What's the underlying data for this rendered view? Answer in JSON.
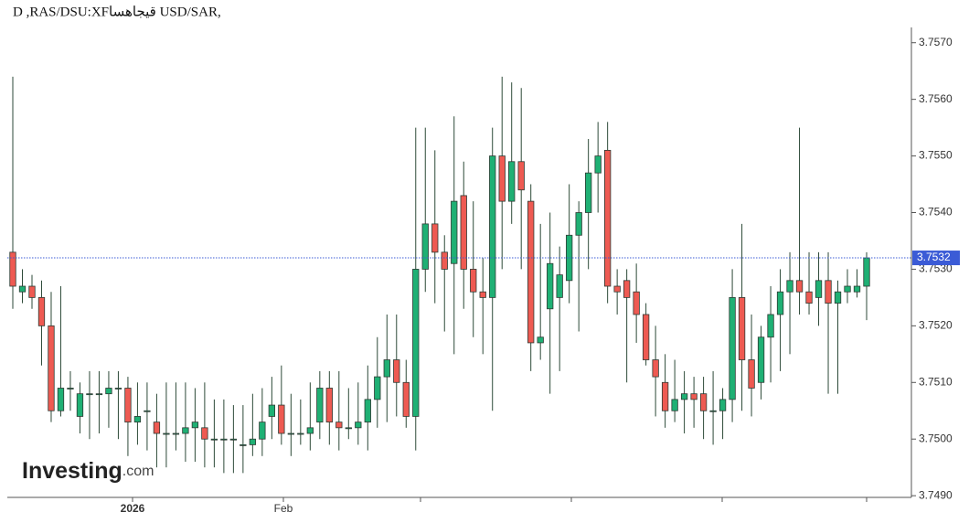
{
  "chart_data": {
    "type": "candlestick",
    "title": "D ,RAS/DSU:XFقيجاهسا USD/SAR,",
    "logo": "Investing",
    "logo_suffix": ".com",
    "x_labels": [
      "2026",
      "Feb"
    ],
    "last_price": 3.7532,
    "up_color": "#1fb074",
    "down_color": "#ee5a52",
    "ylim": [
      3.74897,
      3.75727
    ],
    "yticks": [
      {
        "value": 3.749,
        "label": "3.7490"
      },
      {
        "value": 3.75,
        "label": "3.7500"
      },
      {
        "value": 3.751,
        "label": "3.7510"
      },
      {
        "value": 3.752,
        "label": "3.7520"
      },
      {
        "value": 3.753,
        "label": "3.7530"
      },
      {
        "value": 3.754,
        "label": "3.7540"
      },
      {
        "value": 3.755,
        "label": "3.7550"
      },
      {
        "value": 3.756,
        "label": "3.7560"
      },
      {
        "value": 3.757,
        "label": "3.7570"
      }
    ],
    "open": [
      3.7533,
      3.7526,
      3.7527,
      3.7525,
      3.752,
      3.7505,
      3.7509,
      3.7504,
      3.7508,
      3.7508,
      3.7508,
      3.7509,
      3.7509,
      3.7503,
      3.7505,
      3.7503,
      3.7501,
      3.7501,
      3.7501,
      3.7502,
      3.7502,
      3.75,
      3.75,
      3.75,
      3.7499,
      3.7499,
      3.75,
      3.7504,
      3.7506,
      3.7501,
      3.7501,
      3.7501,
      3.7503,
      3.7509,
      3.7503,
      3.7502,
      3.7502,
      3.7503,
      3.7507,
      3.7511,
      3.7514,
      3.751,
      3.7504,
      3.753,
      3.7538,
      3.7533,
      3.7531,
      3.7543,
      3.753,
      3.7526,
      3.7525,
      3.755,
      3.7542,
      3.7549,
      3.7542,
      3.7517,
      3.7523,
      3.7525,
      3.7528,
      3.7536,
      3.754,
      3.7547,
      3.7551,
      3.7527,
      3.7528,
      3.7526,
      3.7522,
      3.7514,
      3.751,
      3.7505,
      3.7507,
      3.7508,
      3.7508,
      3.7505,
      3.7505,
      3.7507,
      3.7525,
      3.7514,
      3.751,
      3.7518,
      3.7522,
      3.7526,
      3.7528,
      3.7526,
      3.7525,
      3.7528,
      3.7524,
      3.7526,
      3.7526,
      3.7527
    ],
    "high": [
      3.7564,
      3.753,
      3.7529,
      3.7528,
      3.7526,
      3.7527,
      3.7512,
      3.751,
      3.7512,
      3.7512,
      3.7512,
      3.7512,
      3.7511,
      3.751,
      3.751,
      3.7508,
      3.751,
      3.751,
      3.751,
      3.7509,
      3.751,
      3.7507,
      3.7507,
      3.7506,
      3.7506,
      3.7508,
      3.7509,
      3.7511,
      3.7513,
      3.7508,
      3.7507,
      3.751,
      3.7512,
      3.7512,
      3.7512,
      3.7509,
      3.751,
      3.7513,
      3.7518,
      3.7522,
      3.7522,
      3.7514,
      3.7555,
      3.7555,
      3.7551,
      3.7536,
      3.7557,
      3.7549,
      3.7542,
      3.7532,
      3.7555,
      3.7564,
      3.7563,
      3.7562,
      3.7545,
      3.7538,
      3.754,
      3.7534,
      3.7545,
      3.7542,
      3.7553,
      3.7556,
      3.7556,
      3.753,
      3.753,
      3.7531,
      3.7524,
      3.752,
      3.7515,
      3.7514,
      3.7512,
      3.7511,
      3.7511,
      3.7512,
      3.7509,
      3.753,
      3.7538,
      3.7522,
      3.752,
      3.7527,
      3.753,
      3.7533,
      3.7555,
      3.7533,
      3.7533,
      3.7533,
      3.7528,
      3.753,
      3.753,
      3.7533
    ],
    "low": [
      3.7523,
      3.7524,
      3.7523,
      3.7513,
      3.7503,
      3.7504,
      3.7505,
      3.7501,
      3.75,
      3.7501,
      3.7502,
      3.75,
      3.7497,
      3.7499,
      3.7498,
      3.7495,
      3.7495,
      3.7498,
      3.7496,
      3.7496,
      3.7495,
      3.7495,
      3.7494,
      3.7494,
      3.7494,
      3.7497,
      3.7497,
      3.75,
      3.7499,
      3.7497,
      3.7499,
      3.7498,
      3.75,
      3.7499,
      3.7498,
      3.75,
      3.7499,
      3.7498,
      3.7502,
      3.7503,
      3.7504,
      3.7502,
      3.7498,
      3.7526,
      3.7524,
      3.7519,
      3.7515,
      3.7523,
      3.7518,
      3.7515,
      3.7505,
      3.753,
      3.7538,
      3.753,
      3.7512,
      3.7514,
      3.7508,
      3.7512,
      3.7524,
      3.7519,
      3.753,
      3.754,
      3.7524,
      3.7522,
      3.751,
      3.7517,
      3.7513,
      3.7504,
      3.7502,
      3.7503,
      3.7501,
      3.7502,
      3.75,
      3.7499,
      3.75,
      3.7503,
      3.7505,
      3.7504,
      3.7507,
      3.751,
      3.7512,
      3.7515,
      3.7522,
      3.7522,
      3.752,
      3.7508,
      3.7508,
      3.7524,
      3.7525,
      3.7521
    ],
    "close": [
      3.7527,
      3.7527,
      3.7525,
      3.752,
      3.7505,
      3.7509,
      3.7509,
      3.7508,
      3.7508,
      3.7508,
      3.7509,
      3.7509,
      3.7503,
      3.7504,
      3.7505,
      3.7501,
      3.7501,
      3.7501,
      3.7502,
      3.7503,
      3.75,
      3.75,
      3.75,
      3.75,
      3.7499,
      3.75,
      3.7503,
      3.7506,
      3.7501,
      3.7501,
      3.7501,
      3.7502,
      3.7509,
      3.7503,
      3.7502,
      3.7502,
      3.7503,
      3.7507,
      3.7511,
      3.7514,
      3.751,
      3.7504,
      3.753,
      3.7538,
      3.7533,
      3.753,
      3.7542,
      3.753,
      3.7526,
      3.7525,
      3.755,
      3.7542,
      3.7549,
      3.7544,
      3.7517,
      3.7518,
      3.7531,
      3.7529,
      3.7536,
      3.754,
      3.7547,
      3.755,
      3.7527,
      3.7526,
      3.7525,
      3.7522,
      3.7514,
      3.7511,
      3.7505,
      3.7507,
      3.7508,
      3.7507,
      3.7505,
      3.7505,
      3.7507,
      3.7525,
      3.7514,
      3.7509,
      3.7518,
      3.7522,
      3.7526,
      3.7528,
      3.7526,
      3.7524,
      3.7528,
      3.7524,
      3.7526,
      3.7527,
      3.7527,
      3.7532
    ]
  }
}
